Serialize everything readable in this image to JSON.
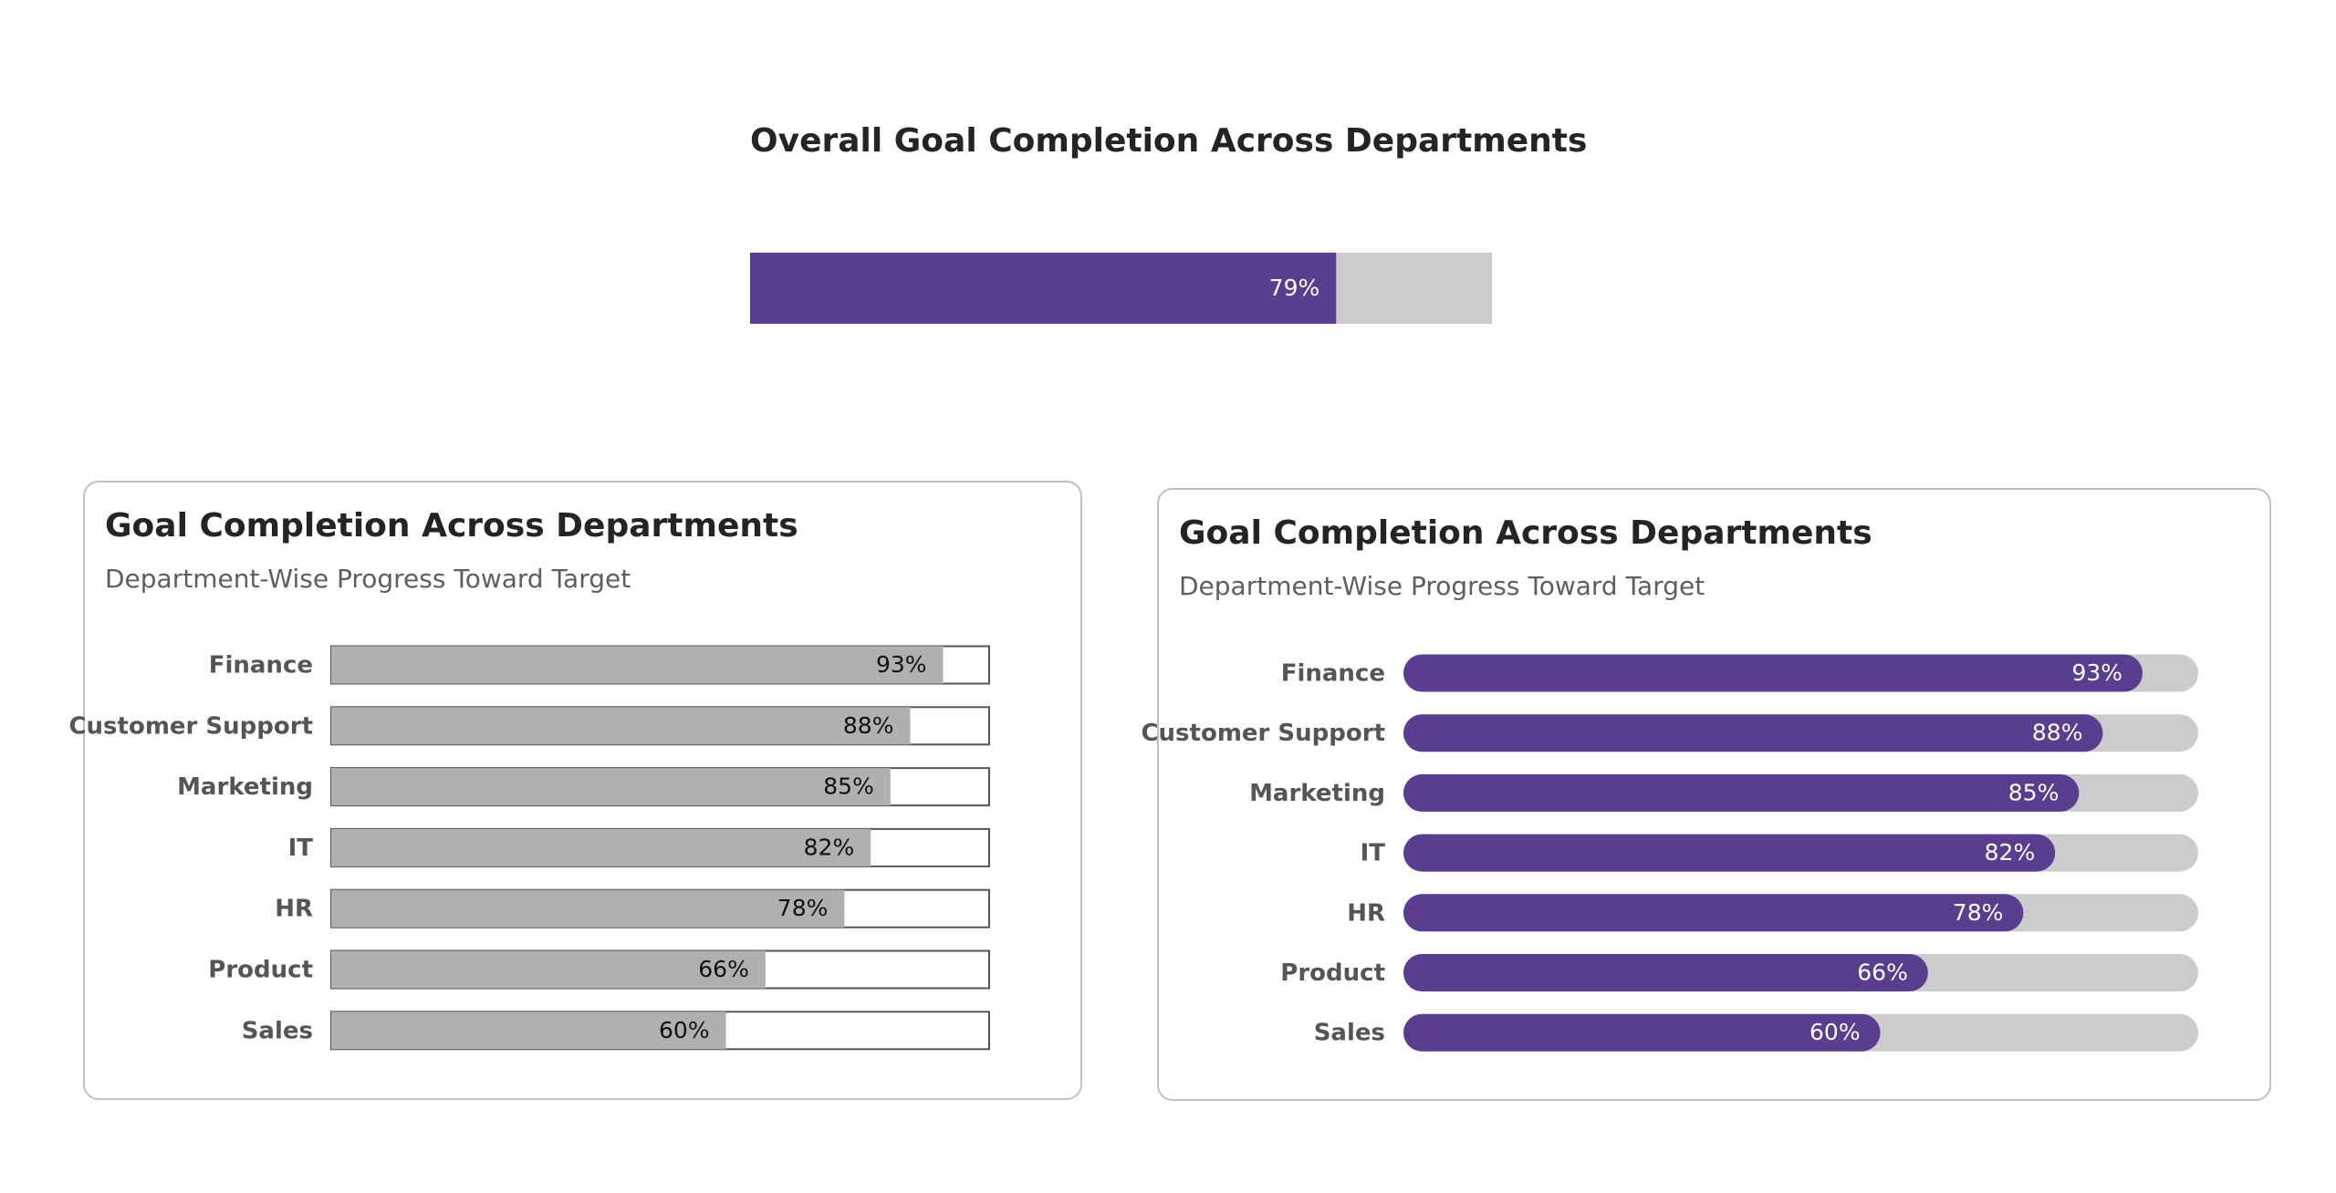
{
  "chart_data": [
    {
      "type": "bar",
      "title": "Overall Goal Completion Across Departments",
      "values": [
        79
      ],
      "value_labels": [
        "79%"
      ],
      "xlim": [
        0,
        100
      ],
      "color": "#5a3d8f",
      "track_color": "#cccccc",
      "label_color": "#ffffff",
      "rounded": false
    },
    {
      "type": "bar",
      "title": "Goal Completion Across Departments",
      "subtitle": "Department-Wise Progress Toward Target",
      "categories": [
        "Finance",
        "Customer Support",
        "Marketing",
        "IT",
        "HR",
        "Product",
        "Sales"
      ],
      "values": [
        93,
        88,
        85,
        82,
        78,
        66,
        60
      ],
      "value_labels": [
        "93%",
        "88%",
        "85%",
        "82%",
        "78%",
        "66%",
        "60%"
      ],
      "xlim": [
        0,
        100
      ],
      "color": "#b0b0b0",
      "track_color": "#ffffff",
      "track_border": "#555555",
      "label_color": "#111111",
      "rounded": false
    },
    {
      "type": "bar",
      "title": "Goal Completion Across Departments",
      "subtitle": "Department-Wise Progress Toward Target",
      "categories": [
        "Finance",
        "Customer Support",
        "Marketing",
        "IT",
        "HR",
        "Product",
        "Sales"
      ],
      "values": [
        93,
        88,
        85,
        82,
        78,
        66,
        60
      ],
      "value_labels": [
        "93%",
        "88%",
        "85%",
        "82%",
        "78%",
        "66%",
        "60%"
      ],
      "xlim": [
        0,
        100
      ],
      "color": "#5a3d8f",
      "track_color": "#cccccc",
      "label_color": "#ffffff",
      "rounded": true
    }
  ]
}
